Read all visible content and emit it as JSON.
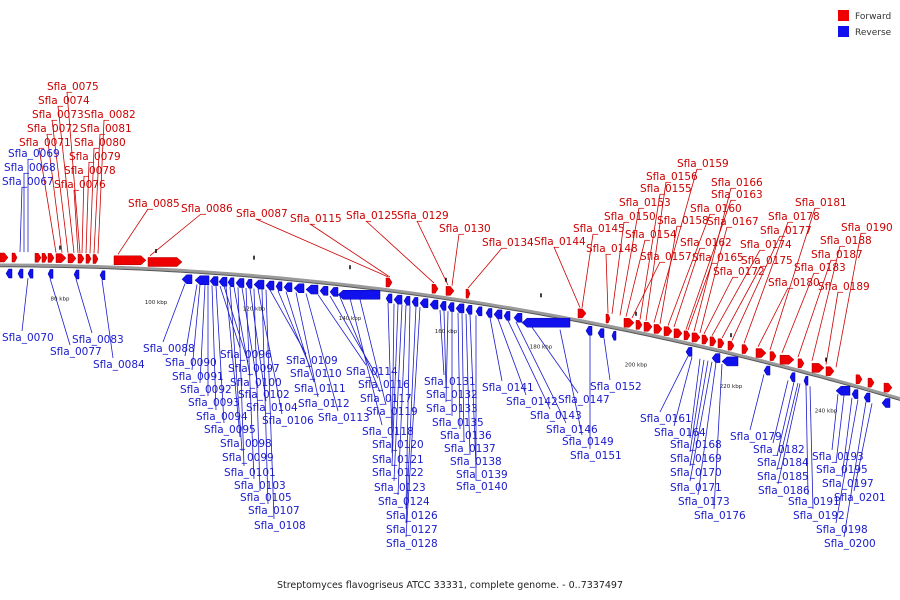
{
  "legend": [
    {
      "name": "Forward",
      "color": "#ee0000"
    },
    {
      "name": "Reverse",
      "color": "#1111ee"
    }
  ],
  "caption": "Streptomyces flavogriseus ATCC 33331, complete genome. - 0..7337497",
  "colors": {
    "forward": "#ee0000",
    "reverse": "#1111ee",
    "backbone": "#999999",
    "forward_label": "#cc0000",
    "reverse_label": "#1a1acc"
  },
  "ticks": [
    "80 kbp",
    "100 kbp",
    "120 kbp",
    "140 kbp",
    "160 kbp",
    "180 kbp",
    "200 kbp",
    "220 kbp",
    "240 kbp"
  ],
  "forward_labels": [
    {
      "text": "Sfla_0075"
    },
    {
      "text": "Sfla_0074"
    },
    {
      "text": "Sfla_0073"
    },
    {
      "text": "Sfla_0082"
    },
    {
      "text": "Sfla_0072"
    },
    {
      "text": "Sfla_0081"
    },
    {
      "text": "Sfla_0071"
    },
    {
      "text": "Sfla_0080"
    },
    {
      "text": "Sfla_0079"
    },
    {
      "text": "Sfla_0078"
    },
    {
      "text": "Sfla_0076"
    },
    {
      "text": "Sfla_0085"
    },
    {
      "text": "Sfla_0086"
    },
    {
      "text": "Sfla_0087"
    },
    {
      "text": "Sfla_0115"
    },
    {
      "text": "Sfla_0125"
    },
    {
      "text": "Sfla_0129"
    },
    {
      "text": "Sfla_0130"
    },
    {
      "text": "Sfla_0134"
    },
    {
      "text": "Sfla_0144"
    },
    {
      "text": "Sfla_0145"
    },
    {
      "text": "Sfla_0148"
    },
    {
      "text": "Sfla_0150"
    },
    {
      "text": "Sfla_0153"
    },
    {
      "text": "Sfla_0154"
    },
    {
      "text": "Sfla_0157"
    },
    {
      "text": "Sfla_0155"
    },
    {
      "text": "Sfla_0156"
    },
    {
      "text": "Sfla_0159"
    },
    {
      "text": "Sfla_0158"
    },
    {
      "text": "Sfla_0160"
    },
    {
      "text": "Sfla_0162"
    },
    {
      "text": "Sfla_0163"
    },
    {
      "text": "Sfla_0165"
    },
    {
      "text": "Sfla_0166"
    },
    {
      "text": "Sfla_0167"
    },
    {
      "text": "Sfla_0172"
    },
    {
      "text": "Sfla_0174"
    },
    {
      "text": "Sfla_0175"
    },
    {
      "text": "Sfla_0177"
    },
    {
      "text": "Sfla_0178"
    },
    {
      "text": "Sfla_0180"
    },
    {
      "text": "Sfla_0181"
    },
    {
      "text": "Sfla_0183"
    },
    {
      "text": "Sfla_0187"
    },
    {
      "text": "Sfla_0188"
    },
    {
      "text": "Sfla_0189"
    },
    {
      "text": "Sfla_0190"
    }
  ],
  "reverse_labels_top": [
    {
      "text": "Sfla_0069"
    },
    {
      "text": "Sfla_0068"
    },
    {
      "text": "Sfla_0067"
    }
  ],
  "reverse_labels": [
    {
      "text": "Sfla_0070"
    },
    {
      "text": "Sfla_0077"
    },
    {
      "text": "Sfla_0083"
    },
    {
      "text": "Sfla_0084"
    },
    {
      "text": "Sfla_0088"
    },
    {
      "text": "Sfla_0090"
    },
    {
      "text": "Sfla_0091"
    },
    {
      "text": "Sfla_0092"
    },
    {
      "text": "Sfla_0093"
    },
    {
      "text": "Sfla_0094"
    },
    {
      "text": "Sfla_0095"
    },
    {
      "text": "Sfla_0096"
    },
    {
      "text": "Sfla_0097"
    },
    {
      "text": "Sfla_0098"
    },
    {
      "text": "Sfla_0099"
    },
    {
      "text": "Sfla_0100"
    },
    {
      "text": "Sfla_0101"
    },
    {
      "text": "Sfla_0102"
    },
    {
      "text": "Sfla_0103"
    },
    {
      "text": "Sfla_0104"
    },
    {
      "text": "Sfla_0105"
    },
    {
      "text": "Sfla_0106"
    },
    {
      "text": "Sfla_0107"
    },
    {
      "text": "Sfla_0108"
    },
    {
      "text": "Sfla_0109"
    },
    {
      "text": "Sfla_0110"
    },
    {
      "text": "Sfla_0111"
    },
    {
      "text": "Sfla_0112"
    },
    {
      "text": "Sfla_0113"
    },
    {
      "text": "Sfla_0114"
    },
    {
      "text": "Sfla_0116"
    },
    {
      "text": "Sfla_0117"
    },
    {
      "text": "Sfla_0118"
    },
    {
      "text": "Sfla_0119"
    },
    {
      "text": "Sfla_0120"
    },
    {
      "text": "Sfla_0121"
    },
    {
      "text": "Sfla_0122"
    },
    {
      "text": "Sfla_0123"
    },
    {
      "text": "Sfla_0124"
    },
    {
      "text": "Sfla_0126"
    },
    {
      "text": "Sfla_0127"
    },
    {
      "text": "Sfla_0128"
    },
    {
      "text": "Sfla_0131"
    },
    {
      "text": "Sfla_0132"
    },
    {
      "text": "Sfla_0133"
    },
    {
      "text": "Sfla_0135"
    },
    {
      "text": "Sfla_0136"
    },
    {
      "text": "Sfla_0137"
    },
    {
      "text": "Sfla_0138"
    },
    {
      "text": "Sfla_0139"
    },
    {
      "text": "Sfla_0140"
    },
    {
      "text": "Sfla_0141"
    },
    {
      "text": "Sfla_0142"
    },
    {
      "text": "Sfla_0143"
    },
    {
      "text": "Sfla_0146"
    },
    {
      "text": "Sfla_0147"
    },
    {
      "text": "Sfla_0149"
    },
    {
      "text": "Sfla_0151"
    },
    {
      "text": "Sfla_0152"
    },
    {
      "text": "Sfla_0161"
    },
    {
      "text": "Sfla_0164"
    },
    {
      "text": "Sfla_0168"
    },
    {
      "text": "Sfla_0169"
    },
    {
      "text": "Sfla_0170"
    },
    {
      "text": "Sfla_0171"
    },
    {
      "text": "Sfla_0173"
    },
    {
      "text": "Sfla_0176"
    },
    {
      "text": "Sfla_0179"
    },
    {
      "text": "Sfla_0182"
    },
    {
      "text": "Sfla_0184"
    },
    {
      "text": "Sfla_0185"
    },
    {
      "text": "Sfla_0186"
    },
    {
      "text": "Sfla_0191"
    },
    {
      "text": "Sfla_0192"
    },
    {
      "text": "Sfla_0193"
    },
    {
      "text": "Sfla_0195"
    },
    {
      "text": "Sfla_0197"
    },
    {
      "text": "Sfla_0198"
    },
    {
      "text": "Sfla_0200"
    },
    {
      "text": "Sfla_0201"
    }
  ]
}
